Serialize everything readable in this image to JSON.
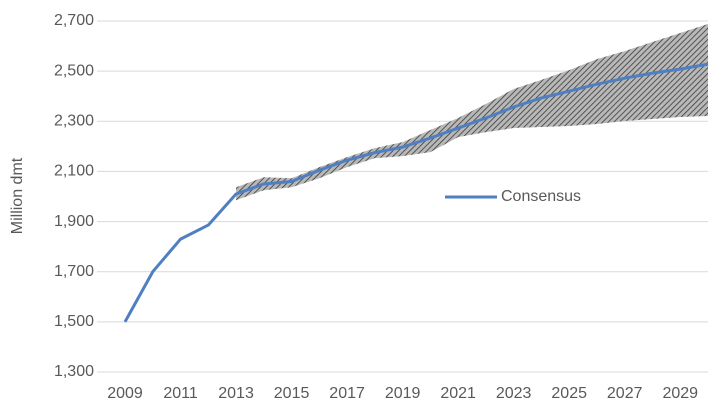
{
  "chart_data": {
    "type": "line",
    "y_label": "Million dmt",
    "categories": [
      "2009",
      null,
      "2011",
      null,
      "2013",
      null,
      "2015",
      null,
      "2017",
      null,
      "2019",
      null,
      "2021",
      null,
      "2023",
      null,
      "2025",
      null,
      "2027",
      null,
      "2029",
      null
    ],
    "series": [
      {
        "name": "Consensus",
        "color": "#4f7fc0",
        "values": [
          1500,
          1700,
          1830,
          1886,
          2010,
          2050,
          2060,
          2105,
          2145,
          2175,
          2197,
          2233,
          2273,
          2313,
          2357,
          2393,
          2420,
          2448,
          2472,
          2492,
          2508,
          2528
        ]
      }
    ],
    "band": {
      "color": "#3a3a3a",
      "upper": [
        null,
        null,
        null,
        null,
        2037,
        2077,
        2073,
        2117,
        2157,
        2193,
        2217,
        2265,
        2313,
        2369,
        2429,
        2465,
        2504,
        2548,
        2580,
        2616,
        2652,
        2688
      ],
      "lower": [
        null,
        null,
        null,
        null,
        1985,
        2025,
        2037,
        2073,
        2117,
        2153,
        2161,
        2177,
        2237,
        2257,
        2273,
        2277,
        2281,
        2289,
        2301,
        2309,
        2317,
        2321
      ]
    },
    "ylim": [
      1300,
      2700
    ],
    "yticks": [
      {
        "value": 1300,
        "label": "1,300"
      },
      {
        "value": 1500,
        "label": "1,500"
      },
      {
        "value": 1700,
        "label": "1,700"
      },
      {
        "value": 1900,
        "label": "1,900"
      },
      {
        "value": 2100,
        "label": "2,100"
      },
      {
        "value": 2300,
        "label": "2,300"
      },
      {
        "value": 2500,
        "label": "2,500"
      },
      {
        "value": 2700,
        "label": "2,700"
      }
    ],
    "grid": true,
    "legend": "center"
  }
}
